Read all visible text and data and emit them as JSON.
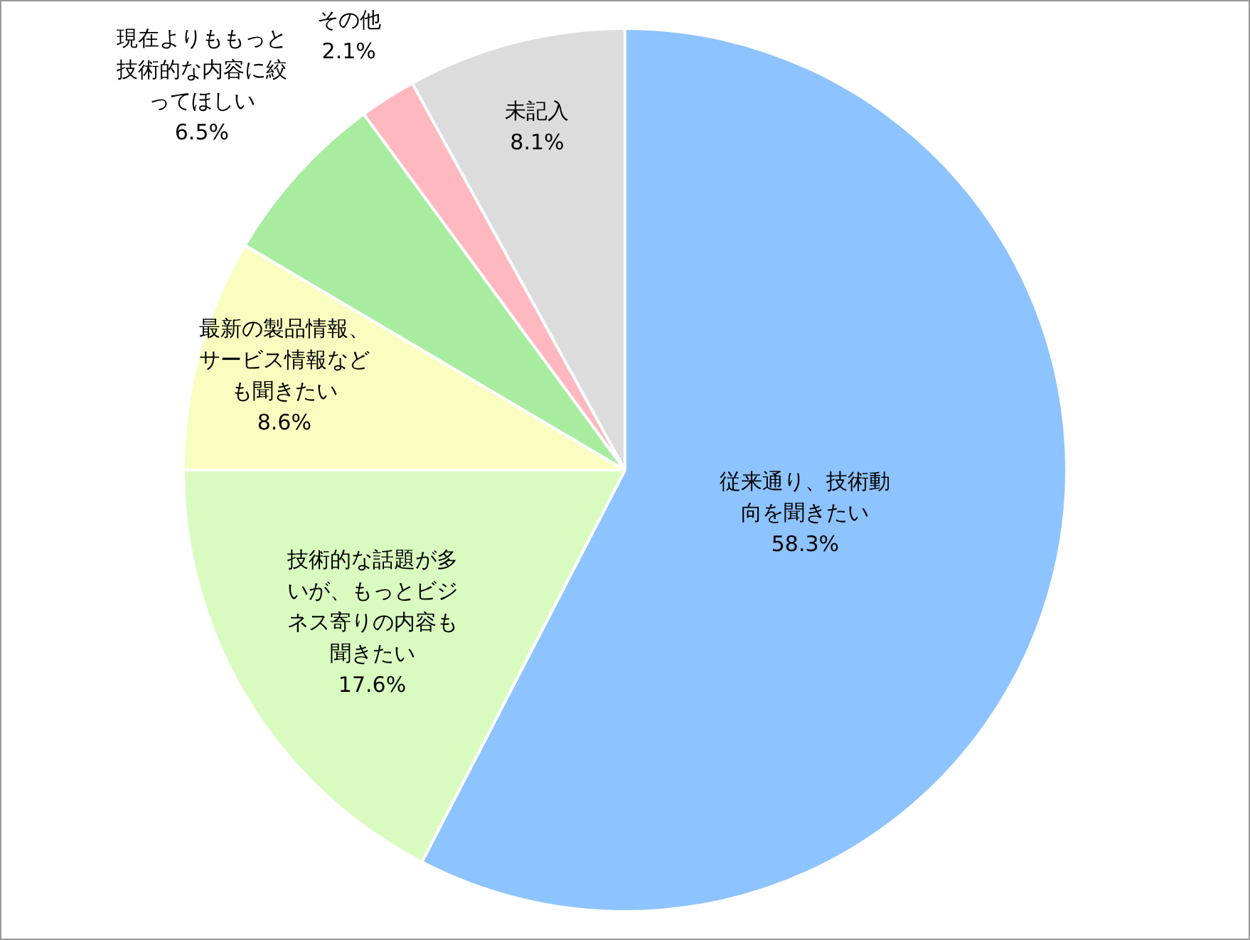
{
  "chart_data": {
    "type": "pie",
    "categories": [
      "従来通り、技術動向を聞きたい",
      "技術的な話題が多いが、もっとビジネス寄りの内容も聞きたい",
      "最新の製品情報、サービス情報なども聞きたい",
      "現在よりももっと技術的な内容に絞ってほしい",
      "その他",
      "未記入"
    ],
    "values": [
      58.3,
      17.6,
      8.6,
      6.5,
      2.1,
      8.1
    ],
    "value_labels": [
      "58.3%",
      "17.6%",
      "8.6%",
      "6.5%",
      "2.1%",
      "8.1%"
    ],
    "colors": [
      "#8dc3ff",
      "#d9fbc0",
      "#fafdc0",
      "#a8eca0",
      "#ffb8c0",
      "#dcdcdc"
    ],
    "legend": false
  }
}
